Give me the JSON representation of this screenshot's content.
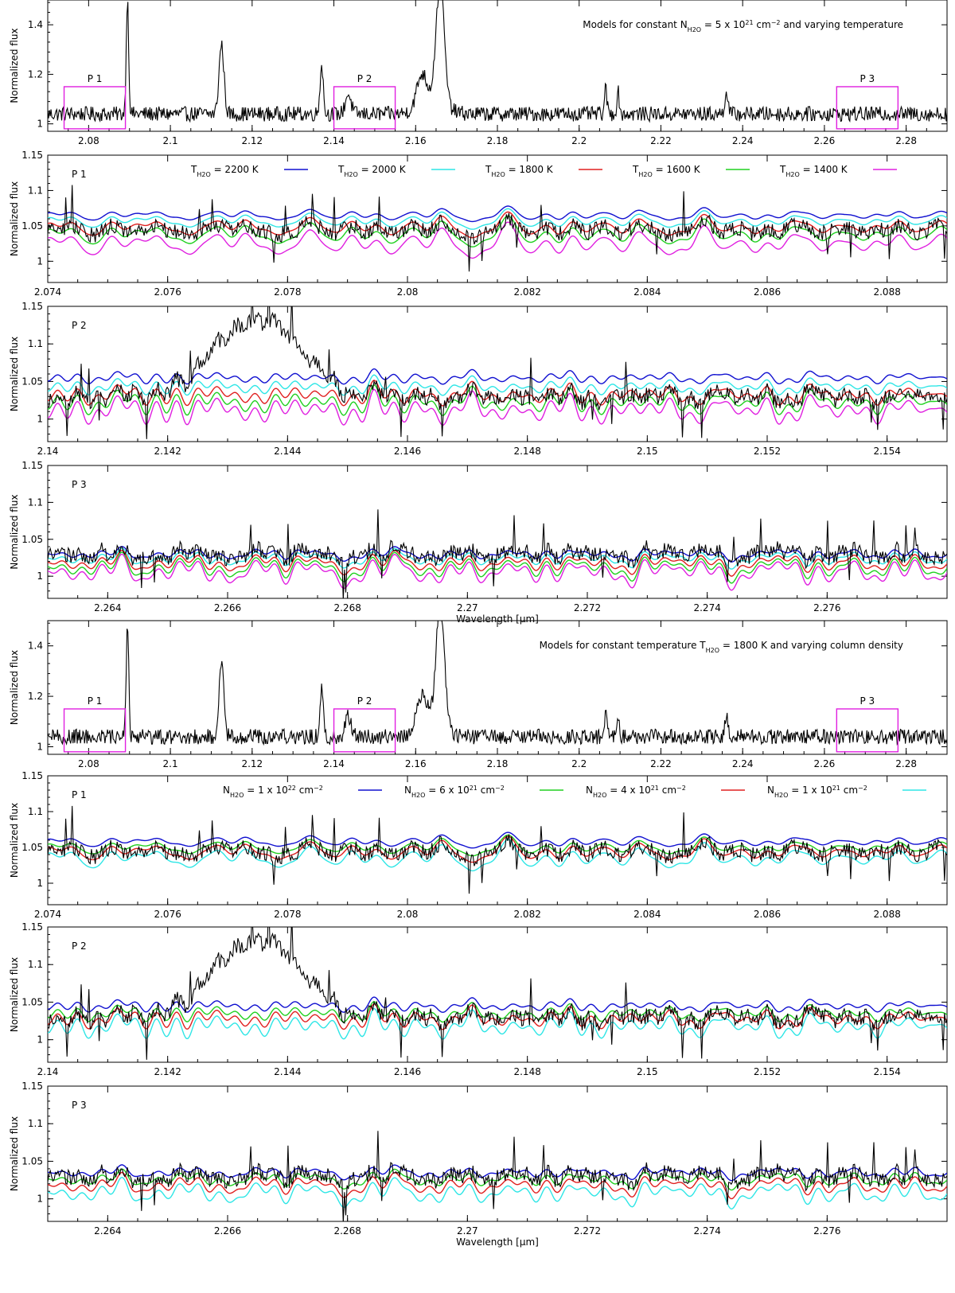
{
  "figure": {
    "ylabel": "Normalized flux",
    "xlabel": "Wavelength [μm]"
  },
  "legend_temperature": {
    "entries": [
      {
        "prefix": "T",
        "sub": "H2O",
        "value": " = 2200 K",
        "color": "#1010d0"
      },
      {
        "prefix": "T",
        "sub": "H2O",
        "value": " = 2000 K",
        "color": "#2ee6e6"
      },
      {
        "prefix": "T",
        "sub": "H2O",
        "value": " = 1800 K",
        "color": "#e02020"
      },
      {
        "prefix": "T",
        "sub": "H2O",
        "value": " = 1600 K",
        "color": "#20d020"
      },
      {
        "prefix": "T",
        "sub": "H2O",
        "value": " = 1400 K",
        "color": "#e020e0"
      }
    ]
  },
  "legend_density": {
    "entries": [
      {
        "prefix": "N",
        "sub": "H2O",
        "value": " = 1 x 10",
        "sup": "22",
        "tail": " cm",
        "tailsup": "−2",
        "color": "#1010d0"
      },
      {
        "prefix": "N",
        "sub": "H2O",
        "value": " = 6 x 10",
        "sup": "21",
        "tail": " cm",
        "tailsup": "−2",
        "color": "#20d020"
      },
      {
        "prefix": "N",
        "sub": "H2O",
        "value": " = 4 x 10",
        "sup": "21",
        "tail": " cm",
        "tailsup": "−2",
        "color": "#e02020"
      },
      {
        "prefix": "N",
        "sub": "H2O",
        "value": " = 1 x 10",
        "sup": "21",
        "tail": " cm",
        "tailsup": "−2",
        "color": "#2ee6e6"
      }
    ]
  },
  "colors": {
    "observed": "#000000",
    "box": "#e020e0"
  },
  "chart_data": [
    {
      "id": "overview-1",
      "type": "line",
      "note": {
        "a": "Models for constant N",
        "sub": "H2O",
        "b": " = 5 x 10",
        "sup": "21",
        "c": " cm",
        "sup2": "−2",
        "d": " and varying temperature"
      },
      "xlim": [
        2.07,
        2.29
      ],
      "ylim": [
        0.97,
        1.5
      ],
      "xticks": [
        {
          "v": 2.08,
          "l": "2.08"
        },
        {
          "v": 2.1,
          "l": "2.1"
        },
        {
          "v": 2.12,
          "l": "2.12"
        },
        {
          "v": 2.14,
          "l": "2.14"
        },
        {
          "v": 2.16,
          "l": "2.16"
        },
        {
          "v": 2.18,
          "l": "2.18"
        },
        {
          "v": 2.2,
          "l": "2.2"
        },
        {
          "v": 2.22,
          "l": "2.22"
        },
        {
          "v": 2.24,
          "l": "2.24"
        },
        {
          "v": 2.26,
          "l": "2.26"
        },
        {
          "v": 2.28,
          "l": "2.28"
        }
      ],
      "yticks": [
        {
          "v": 1,
          "l": "1"
        },
        {
          "v": 1.2,
          "l": "1.2"
        },
        {
          "v": 1.4,
          "l": "1.4"
        }
      ],
      "regions": [
        {
          "label": "P 1",
          "x0": 2.074,
          "x1": 2.089,
          "y0": 0.98,
          "y1": 1.15
        },
        {
          "label": "P 2",
          "x0": 2.14,
          "x1": 2.155,
          "y0": 0.98,
          "y1": 1.15
        },
        {
          "label": "P 3",
          "x0": 2.263,
          "x1": 2.278,
          "y0": 0.98,
          "y1": 1.15
        }
      ],
      "peaks": [
        {
          "x": 2.0895,
          "y": 1.5,
          "w": 0.0003
        },
        {
          "x": 2.1125,
          "y": 1.32,
          "w": 0.0006
        },
        {
          "x": 2.137,
          "y": 1.24,
          "w": 0.0004
        },
        {
          "x": 2.1435,
          "y": 1.12,
          "w": 0.0007
        },
        {
          "x": 2.1615,
          "y": 1.16,
          "w": 0.0012
        },
        {
          "x": 2.166,
          "y": 1.52,
          "w": 0.001
        },
        {
          "x": 2.2065,
          "y": 1.14,
          "w": 0.0003
        },
        {
          "x": 2.2095,
          "y": 1.13,
          "w": 0.0003
        },
        {
          "x": 2.236,
          "y": 1.13,
          "w": 0.0004
        }
      ],
      "baseline": 1.04
    },
    {
      "id": "temp-p1",
      "label": "P 1",
      "type": "line",
      "legend": "temperature",
      "xlim": [
        2.074,
        2.089
      ],
      "ylim": [
        0.97,
        1.15
      ],
      "xticks": [
        {
          "v": 2.074,
          "l": "2.074"
        },
        {
          "v": 2.076,
          "l": "2.076"
        },
        {
          "v": 2.078,
          "l": "2.078"
        },
        {
          "v": 2.08,
          "l": "2.08"
        },
        {
          "v": 2.082,
          "l": "2.082"
        },
        {
          "v": 2.084,
          "l": "2.084"
        },
        {
          "v": 2.086,
          "l": "2.086"
        },
        {
          "v": 2.088,
          "l": "2.088"
        }
      ],
      "yticks": [
        {
          "v": 1,
          "l": "1"
        },
        {
          "v": 1.05,
          "l": "1.05"
        },
        {
          "v": 1.1,
          "l": "1.1"
        },
        {
          "v": 1.15,
          "l": "1.15"
        }
      ],
      "observed_level": 1.045,
      "models": [
        1.065,
        1.057,
        1.048,
        1.038,
        1.025
      ]
    },
    {
      "id": "temp-p2",
      "label": "P 2",
      "type": "line",
      "legend": "temperature",
      "xlim": [
        2.14,
        2.155
      ],
      "ylim": [
        0.97,
        1.15
      ],
      "xticks": [
        {
          "v": 2.14,
          "l": "2.14"
        },
        {
          "v": 2.142,
          "l": "2.142"
        },
        {
          "v": 2.144,
          "l": "2.144"
        },
        {
          "v": 2.146,
          "l": "2.146"
        },
        {
          "v": 2.148,
          "l": "2.148"
        },
        {
          "v": 2.15,
          "l": "2.15"
        },
        {
          "v": 2.152,
          "l": "2.152"
        },
        {
          "v": 2.154,
          "l": "2.154"
        }
      ],
      "yticks": [
        {
          "v": 1,
          "l": "1"
        },
        {
          "v": 1.05,
          "l": "1.05"
        },
        {
          "v": 1.1,
          "l": "1.1"
        },
        {
          "v": 1.15,
          "l": "1.15"
        }
      ],
      "observed_level": 1.03,
      "hump": {
        "x": 2.1435,
        "y": 1.135,
        "w": 0.0007
      },
      "models": [
        1.055,
        1.043,
        1.032,
        1.022,
        1.012
      ]
    },
    {
      "id": "temp-p3",
      "label": "P 3",
      "type": "line",
      "legend": "temperature",
      "xlim": [
        2.263,
        2.278
      ],
      "ylim": [
        0.97,
        1.15
      ],
      "xticks": [
        {
          "v": 2.264,
          "l": "2.264"
        },
        {
          "v": 2.266,
          "l": "2.266"
        },
        {
          "v": 2.268,
          "l": "2.268"
        },
        {
          "v": 2.27,
          "l": "2.27"
        },
        {
          "v": 2.272,
          "l": "2.272"
        },
        {
          "v": 2.274,
          "l": "2.274"
        },
        {
          "v": 2.276,
          "l": "2.276"
        }
      ],
      "yticks": [
        {
          "v": 1,
          "l": "1"
        },
        {
          "v": 1.05,
          "l": "1.05"
        },
        {
          "v": 1.1,
          "l": "1.1"
        },
        {
          "v": 1.15,
          "l": "1.15"
        }
      ],
      "observed_level": 1.03,
      "models": [
        1.03,
        1.024,
        1.018,
        1.012,
        1.006
      ],
      "xlabel": true
    },
    {
      "id": "overview-2",
      "type": "line",
      "note": {
        "a": "Models for constant temperature T",
        "sub": "H2O",
        "b": " = 1800 K and varying column density"
      },
      "xlim": [
        2.07,
        2.29
      ],
      "ylim": [
        0.97,
        1.5
      ],
      "xticks": [
        {
          "v": 2.08,
          "l": "2.08"
        },
        {
          "v": 2.1,
          "l": "2.1"
        },
        {
          "v": 2.12,
          "l": "2.12"
        },
        {
          "v": 2.14,
          "l": "2.14"
        },
        {
          "v": 2.16,
          "l": "2.16"
        },
        {
          "v": 2.18,
          "l": "2.18"
        },
        {
          "v": 2.2,
          "l": "2.2"
        },
        {
          "v": 2.22,
          "l": "2.22"
        },
        {
          "v": 2.24,
          "l": "2.24"
        },
        {
          "v": 2.26,
          "l": "2.26"
        },
        {
          "v": 2.28,
          "l": "2.28"
        }
      ],
      "yticks": [
        {
          "v": 1,
          "l": "1"
        },
        {
          "v": 1.2,
          "l": "1.2"
        },
        {
          "v": 1.4,
          "l": "1.4"
        }
      ],
      "regions": [
        {
          "label": "P 1",
          "x0": 2.074,
          "x1": 2.089,
          "y0": 0.98,
          "y1": 1.15
        },
        {
          "label": "P 2",
          "x0": 2.14,
          "x1": 2.155,
          "y0": 0.98,
          "y1": 1.15
        },
        {
          "label": "P 3",
          "x0": 2.263,
          "x1": 2.278,
          "y0": 0.98,
          "y1": 1.15
        }
      ],
      "peaks": [
        {
          "x": 2.0895,
          "y": 1.5,
          "w": 0.0003
        },
        {
          "x": 2.1125,
          "y": 1.32,
          "w": 0.0006
        },
        {
          "x": 2.137,
          "y": 1.24,
          "w": 0.0004
        },
        {
          "x": 2.1435,
          "y": 1.12,
          "w": 0.0007
        },
        {
          "x": 2.1615,
          "y": 1.16,
          "w": 0.0012
        },
        {
          "x": 2.166,
          "y": 1.52,
          "w": 0.001
        },
        {
          "x": 2.2065,
          "y": 1.14,
          "w": 0.0003
        },
        {
          "x": 2.2095,
          "y": 1.13,
          "w": 0.0003
        },
        {
          "x": 2.236,
          "y": 1.13,
          "w": 0.0004
        }
      ],
      "baseline": 1.04
    },
    {
      "id": "dens-p1",
      "label": "P 1",
      "type": "line",
      "legend": "density",
      "xlim": [
        2.074,
        2.089
      ],
      "ylim": [
        0.97,
        1.15
      ],
      "xticks": [
        {
          "v": 2.074,
          "l": "2.074"
        },
        {
          "v": 2.076,
          "l": "2.076"
        },
        {
          "v": 2.078,
          "l": "2.078"
        },
        {
          "v": 2.08,
          "l": "2.08"
        },
        {
          "v": 2.082,
          "l": "2.082"
        },
        {
          "v": 2.084,
          "l": "2.084"
        },
        {
          "v": 2.086,
          "l": "2.086"
        },
        {
          "v": 2.088,
          "l": "2.088"
        }
      ],
      "yticks": [
        {
          "v": 1,
          "l": "1"
        },
        {
          "v": 1.05,
          "l": "1.05"
        },
        {
          "v": 1.1,
          "l": "1.1"
        },
        {
          "v": 1.15,
          "l": "1.15"
        }
      ],
      "observed_level": 1.045,
      "models": [
        1.058,
        1.05,
        1.044,
        1.035
      ]
    },
    {
      "id": "dens-p2",
      "label": "P 2",
      "type": "line",
      "legend": "density",
      "xlim": [
        2.14,
        2.155
      ],
      "ylim": [
        0.97,
        1.15
      ],
      "xticks": [
        {
          "v": 2.14,
          "l": "2.14"
        },
        {
          "v": 2.142,
          "l": "2.142"
        },
        {
          "v": 2.144,
          "l": "2.144"
        },
        {
          "v": 2.146,
          "l": "2.146"
        },
        {
          "v": 2.148,
          "l": "2.148"
        },
        {
          "v": 2.15,
          "l": "2.15"
        },
        {
          "v": 2.152,
          "l": "2.152"
        },
        {
          "v": 2.154,
          "l": "2.154"
        }
      ],
      "yticks": [
        {
          "v": 1,
          "l": "1"
        },
        {
          "v": 1.05,
          "l": "1.05"
        },
        {
          "v": 1.1,
          "l": "1.1"
        },
        {
          "v": 1.15,
          "l": "1.15"
        }
      ],
      "observed_level": 1.03,
      "hump": {
        "x": 2.1435,
        "y": 1.135,
        "w": 0.0007
      },
      "models": [
        1.045,
        1.035,
        1.028,
        1.018
      ]
    },
    {
      "id": "dens-p3",
      "label": "P 3",
      "type": "line",
      "legend": "density",
      "xlim": [
        2.263,
        2.278
      ],
      "ylim": [
        0.97,
        1.15
      ],
      "xticks": [
        {
          "v": 2.264,
          "l": "2.264"
        },
        {
          "v": 2.266,
          "l": "2.266"
        },
        {
          "v": 2.268,
          "l": "2.268"
        },
        {
          "v": 2.27,
          "l": "2.27"
        },
        {
          "v": 2.272,
          "l": "2.272"
        },
        {
          "v": 2.274,
          "l": "2.274"
        },
        {
          "v": 2.276,
          "l": "2.276"
        }
      ],
      "yticks": [
        {
          "v": 1,
          "l": "1"
        },
        {
          "v": 1.05,
          "l": "1.05"
        },
        {
          "v": 1.1,
          "l": "1.1"
        },
        {
          "v": 1.15,
          "l": "1.15"
        }
      ],
      "observed_level": 1.03,
      "models": [
        1.035,
        1.026,
        1.018,
        1.008
      ],
      "xlabel": true
    }
  ]
}
